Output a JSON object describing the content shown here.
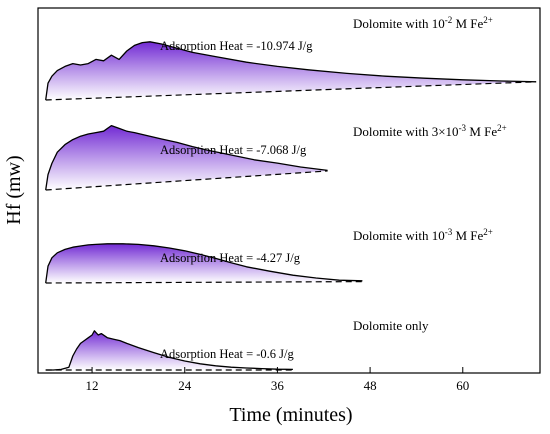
{
  "chart_data": {
    "type": "area",
    "xlabel": "Time (minutes)",
    "ylabel": "Hf (mw)",
    "xlim": [
      5,
      70
    ],
    "x_ticks": [
      12,
      24,
      36,
      48,
      60
    ],
    "grid": false,
    "series": [
      {
        "name_base": "Dolomite with 10",
        "name_sup": "-2",
        "name_mid": " M Fe",
        "name_ion": "2+",
        "annotation": "Adsorption Heat = -10.974 J/g",
        "x": [
          6,
          6.3,
          6.8,
          7.5,
          8.5,
          9.5,
          10.5,
          11.5,
          12.5,
          13.5,
          14.5,
          15.5,
          16.5,
          17.5,
          18.5,
          19.5,
          21,
          23,
          25,
          28,
          32,
          36,
          40,
          45,
          50,
          55,
          60,
          65,
          69.5
        ],
        "y": [
          0.0,
          0.6,
          0.85,
          1.05,
          1.2,
          1.3,
          1.25,
          1.3,
          1.45,
          1.4,
          1.6,
          1.45,
          1.75,
          1.95,
          2.05,
          2.08,
          2.0,
          1.85,
          1.7,
          1.55,
          1.35,
          1.2,
          1.08,
          0.95,
          0.85,
          0.78,
          0.72,
          0.68,
          0.65
        ],
        "baseline": [
          0.0,
          0.65
        ],
        "x_end": 69.5
      },
      {
        "name_base": "Dolomite with 3×10",
        "name_sup": "-3",
        "name_mid": " M Fe",
        "name_ion": "2+",
        "annotation": "Adsorption Heat = -7.068 J/g",
        "x": [
          6,
          6.3,
          6.8,
          7.5,
          8.5,
          9.5,
          10.5,
          11.5,
          12.5,
          13.5,
          14.5,
          15.5,
          16.5,
          17.5,
          19,
          21,
          23,
          25,
          27,
          30,
          33,
          36,
          39,
          42.5
        ],
        "y": [
          0.0,
          0.55,
          0.95,
          1.35,
          1.62,
          1.8,
          1.92,
          2.0,
          2.05,
          2.1,
          2.3,
          2.2,
          2.1,
          2.05,
          1.95,
          1.82,
          1.7,
          1.55,
          1.42,
          1.25,
          1.08,
          0.96,
          0.82,
          0.7
        ],
        "baseline": [
          0.0,
          0.68
        ],
        "x_end": 42.5
      },
      {
        "name_base": "Dolomite with 10",
        "name_sup": "-3",
        "name_mid": " M Fe",
        "name_ion": "2+",
        "annotation": "Adsorption Heat = -4.27 J/g",
        "x": [
          6,
          6.3,
          6.8,
          7.5,
          8.5,
          9.5,
          10.5,
          11.5,
          12.5,
          14,
          16,
          18,
          20,
          22,
          24,
          26,
          28,
          30,
          32,
          35,
          38,
          41,
          44,
          47
        ],
        "y": [
          0.0,
          0.6,
          0.9,
          1.08,
          1.2,
          1.28,
          1.32,
          1.36,
          1.38,
          1.4,
          1.4,
          1.38,
          1.33,
          1.25,
          1.15,
          1.02,
          0.88,
          0.72,
          0.58,
          0.42,
          0.28,
          0.18,
          0.1,
          0.08
        ],
        "baseline": [
          0.0,
          0.05
        ],
        "x_end": 47
      },
      {
        "name_base": "Dolomite only",
        "name_sup": "",
        "name_mid": "",
        "name_ion": "",
        "annotation": "Adsorption Heat = -0.6 J/g",
        "x": [
          6,
          7,
          8,
          9,
          9.5,
          10,
          10.5,
          11,
          11.5,
          12,
          12.3,
          12.8,
          13.2,
          14,
          14.8,
          15.6,
          16.5,
          18,
          20,
          22,
          24,
          26,
          28,
          30,
          32,
          34,
          36,
          38
        ],
        "y": [
          0.0,
          0.0,
          0.02,
          0.1,
          0.5,
          0.75,
          0.95,
          1.05,
          1.15,
          1.25,
          1.4,
          1.25,
          1.3,
          1.15,
          1.1,
          1.05,
          0.95,
          0.8,
          0.62,
          0.45,
          0.32,
          0.22,
          0.15,
          0.1,
          0.07,
          0.05,
          0.03,
          0.02
        ],
        "baseline": [
          0.0,
          0.0
        ],
        "x_end": 38
      }
    ]
  }
}
